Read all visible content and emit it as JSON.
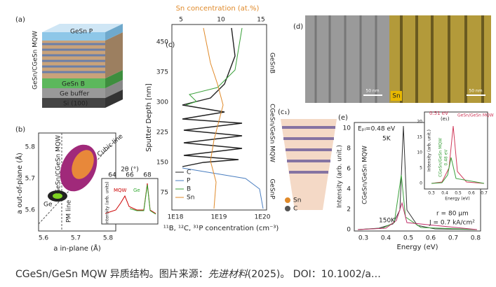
{
  "a": {
    "label": "(a)",
    "layers": [
      "GeSn P",
      "GeSn/CGeSn MQW",
      "GeSn B",
      "Ge buffer",
      "Si (100)"
    ]
  },
  "b": {
    "label": "(b)",
    "y_label": "a out-of-plane (Å)",
    "x_label": "a in-plane (Å)",
    "yticks": [
      "5.8",
      "5.7",
      "5.6"
    ],
    "xticks": [
      "5.6",
      "5.7",
      "5.8"
    ],
    "annotations": [
      "GeSn/CGeSn MQW",
      "Cubic line",
      "Ge",
      "PM line"
    ],
    "inset": {
      "x_label": "2θ (°)",
      "xticks": [
        "64",
        "66",
        "68"
      ],
      "y_label": "Intensity (arb. units)",
      "annotations": [
        "MQW",
        "Ge"
      ]
    }
  },
  "c": {
    "label": "(c)",
    "top_label": "Sn concentration (at.%)",
    "top_ticks": [
      "5",
      "10",
      "15"
    ],
    "y_label": "Sputter Depth [nm]",
    "yticks": [
      "450",
      "375",
      "300",
      "225",
      "150",
      "75"
    ],
    "xticks": [
      "1E18",
      "1E19",
      "1E20"
    ],
    "x_label": "¹¹B, ¹²C, ³¹P concentration (cm⁻³)",
    "legend": [
      "C",
      "P",
      "B",
      "Sn"
    ],
    "regions": [
      "GeSnB",
      "CGeSn/GeSn MQW",
      "GeSnP"
    ]
  },
  "d": {
    "label": "(d)",
    "scale_bars": [
      "50 nm",
      "50 nm"
    ],
    "element": "Sn"
  },
  "c1": {
    "label": "(c₁)",
    "legend": [
      "Sn",
      "C"
    ]
  },
  "e": {
    "label": "(e)",
    "peak": "Eₚₗ=0.48 eV",
    "temps": [
      "5K",
      "150K"
    ],
    "y_label": "Intensity (arb. unit.)",
    "yticks": [
      "0",
      "2",
      "4",
      "6",
      "8",
      "10"
    ],
    "xticks": [
      "0.3",
      "0.4",
      "0.5",
      "0.6",
      "0.7",
      "0.8"
    ],
    "x_label": "Energy (eV)",
    "sample": "CGeSn/GeSn MQW",
    "conditions": [
      "r = 80 µm",
      "J = 0.7 kA/cm²"
    ],
    "inset": {
      "label": "(e₁)",
      "annotations": [
        "0.51 eV",
        "GeSn/GeSn MQW",
        "CGeSn/GeSn MQW",
        "0.48 eV"
      ],
      "yticks": [
        "0",
        "5",
        "10",
        "15",
        "20"
      ],
      "xticks": [
        "0.3",
        "0.4",
        "0.5",
        "0.6",
        "0.7"
      ],
      "x_label": "Energy (eV)",
      "y_label": "Intensity (arb. unit.)"
    }
  },
  "caption": {
    "text": "CGeSn/GeSn MQW 异质结构。图片来源：",
    "journal": "先进材料",
    "rest": "(2025)。 DOI：10.1002/a…"
  }
}
